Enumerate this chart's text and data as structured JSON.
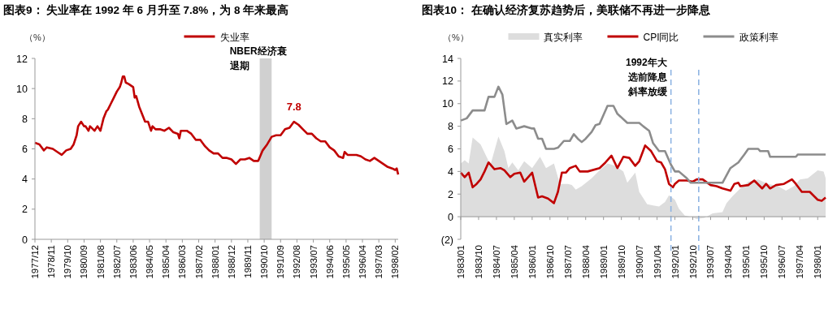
{
  "chart_data": [
    {
      "type": "line",
      "title": "图表9：  失业率在 1992 年 6 月升至 7.8%，为 8 年来最高",
      "ylabel": "（%）",
      "legend": "top",
      "xlim": [
        "1977-12",
        "1998-04"
      ],
      "xticks": [
        {
          "value": "1977-12",
          "label": "1977/12"
        },
        {
          "value": "1978-11",
          "label": "1978/11"
        },
        {
          "value": "1979-10",
          "label": "1979/10"
        },
        {
          "value": "1980-09",
          "label": "1980/09"
        },
        {
          "value": "1981-08",
          "label": "1981/08"
        },
        {
          "value": "1982-07",
          "label": "1982/07"
        },
        {
          "value": "1983-06",
          "label": "1983/06"
        },
        {
          "value": "1984-05",
          "label": "1984/05"
        },
        {
          "value": "1985-04",
          "label": "1985/04"
        },
        {
          "value": "1986-03",
          "label": "1986/03"
        },
        {
          "value": "1987-02",
          "label": "1987/02"
        },
        {
          "value": "1988-01",
          "label": "1988/01"
        },
        {
          "value": "1988-12",
          "label": "1988/12"
        },
        {
          "value": "1989-11",
          "label": "1989/11"
        },
        {
          "value": "1990-10",
          "label": "1990/10"
        },
        {
          "value": "1991-09",
          "label": "1991/09"
        },
        {
          "value": "1992-08",
          "label": "1992/08"
        },
        {
          "value": "1993-07",
          "label": "1993/07"
        },
        {
          "value": "1994-06",
          "label": "1994/06"
        },
        {
          "value": "1995-05",
          "label": "1995/05"
        },
        {
          "value": "1996-04",
          "label": "1996/04"
        },
        {
          "value": "1997-03",
          "label": "1997/03"
        },
        {
          "value": "1998-02",
          "label": "1998/02"
        }
      ],
      "ylim": [
        0,
        12
      ],
      "yticks": [
        0,
        2,
        4,
        6,
        8,
        10,
        12
      ],
      "bands": [
        {
          "axis": "x",
          "from": "1990-07",
          "to": "1991-03",
          "label": "NBER经济衰退期",
          "color": "#c8c8c8"
        }
      ],
      "annotations": [
        {
          "text": "7.8",
          "x": "1992-06",
          "y": 7.8
        }
      ],
      "series": [
        {
          "name": "失业率",
          "color": "#c00000",
          "type": "line",
          "x": [
            "1977-12",
            "1978-03",
            "1978-06",
            "1978-08",
            "1978-12",
            "1979-03",
            "1979-06",
            "1979-09",
            "1979-12",
            "1980-02",
            "1980-04",
            "1980-05",
            "1980-07",
            "1980-09",
            "1980-10",
            "1980-12",
            "1981-01",
            "1981-04",
            "1981-06",
            "1981-08",
            "1981-10",
            "1981-12",
            "1982-01",
            "1982-03",
            "1982-05",
            "1982-07",
            "1982-09",
            "1982-10",
            "1982-11",
            "1982-12",
            "1983-01",
            "1983-03",
            "1983-06",
            "1983-07",
            "1983-08",
            "1983-10",
            "1983-12",
            "1984-02",
            "1984-04",
            "1984-06",
            "1984-07",
            "1984-09",
            "1984-12",
            "1985-03",
            "1985-06",
            "1985-09",
            "1985-12",
            "1986-01",
            "1986-02",
            "1986-06",
            "1986-09",
            "1986-12",
            "1987-03",
            "1987-06",
            "1987-09",
            "1987-12",
            "1988-03",
            "1988-06",
            "1988-09",
            "1988-12",
            "1989-03",
            "1989-06",
            "1989-09",
            "1989-12",
            "1990-03",
            "1990-06",
            "1990-09",
            "1990-12",
            "1991-03",
            "1991-06",
            "1991-09",
            "1991-12",
            "1992-03",
            "1992-06",
            "1992-09",
            "1992-12",
            "1993-03",
            "1993-06",
            "1993-09",
            "1993-12",
            "1994-03",
            "1994-06",
            "1994-09",
            "1994-12",
            "1995-03",
            "1995-04",
            "1995-06",
            "1995-09",
            "1995-12",
            "1996-03",
            "1996-06",
            "1996-09",
            "1996-12",
            "1997-03",
            "1997-06",
            "1997-09",
            "1997-12",
            "1998-02",
            "1998-03",
            "1998-04"
          ],
          "values": [
            6.4,
            6.3,
            5.9,
            6.1,
            6.0,
            5.8,
            5.6,
            5.9,
            6.0,
            6.3,
            6.9,
            7.5,
            7.8,
            7.5,
            7.5,
            7.2,
            7.5,
            7.2,
            7.5,
            7.2,
            8.0,
            8.5,
            8.6,
            9.0,
            9.4,
            9.8,
            10.1,
            10.4,
            10.8,
            10.8,
            10.4,
            10.3,
            10.1,
            9.4,
            9.5,
            8.8,
            8.3,
            7.8,
            7.8,
            7.2,
            7.5,
            7.3,
            7.3,
            7.2,
            7.4,
            7.1,
            7.0,
            6.7,
            7.2,
            7.2,
            7.0,
            6.6,
            6.6,
            6.2,
            5.9,
            5.7,
            5.7,
            5.4,
            5.4,
            5.3,
            5.0,
            5.3,
            5.3,
            5.4,
            5.2,
            5.2,
            5.9,
            6.3,
            6.8,
            6.9,
            6.9,
            7.3,
            7.4,
            7.8,
            7.6,
            7.3,
            7.0,
            7.0,
            6.7,
            6.5,
            6.5,
            6.1,
            5.9,
            5.5,
            5.4,
            5.8,
            5.6,
            5.6,
            5.6,
            5.5,
            5.3,
            5.2,
            5.4,
            5.2,
            5.0,
            4.8,
            4.7,
            4.6,
            4.7,
            4.3
          ]
        }
      ]
    },
    {
      "type": "line",
      "title": "图表10：  在确认经济复苏趋势后，美联储不再进一步降息",
      "ylabel": "（%）",
      "legend": "top",
      "xlim": [
        "1983-01",
        "1998-05"
      ],
      "xticks": [
        {
          "value": "1983-01",
          "label": "1983/01"
        },
        {
          "value": "1983-10",
          "label": "1983/10"
        },
        {
          "value": "1984-07",
          "label": "1984/07"
        },
        {
          "value": "1985-04",
          "label": "1985/04"
        },
        {
          "value": "1986-01",
          "label": "1986/01"
        },
        {
          "value": "1986-10",
          "label": "1986/10"
        },
        {
          "value": "1987-07",
          "label": "1987/07"
        },
        {
          "value": "1988-04",
          "label": "1988/04"
        },
        {
          "value": "1989-01",
          "label": "1989/01"
        },
        {
          "value": "1989-10",
          "label": "1989/10"
        },
        {
          "value": "1990-07",
          "label": "1990/07"
        },
        {
          "value": "1991-04",
          "label": "1991/04"
        },
        {
          "value": "1992-01",
          "label": "1992/01"
        },
        {
          "value": "1992-10",
          "label": "1992/10"
        },
        {
          "value": "1993-07",
          "label": "1993/07"
        },
        {
          "value": "1994-04",
          "label": "1994/04"
        },
        {
          "value": "1995-01",
          "label": "1995/01"
        },
        {
          "value": "1995-10",
          "label": "1995/10"
        },
        {
          "value": "1996-07",
          "label": "1996/07"
        },
        {
          "value": "1997-04",
          "label": "1997/04"
        },
        {
          "value": "1998-01",
          "label": "1998/01"
        }
      ],
      "ylim": [
        -2,
        14
      ],
      "yticks": [
        {
          "value": -2,
          "label": "(2)"
        },
        0,
        2,
        4,
        6,
        8,
        10,
        12,
        14
      ],
      "ref_lines": [
        {
          "axis": "x",
          "value": "1991-11",
          "label": "1992年大选前降息斜率放缓",
          "color": "#8eb4e3",
          "line_style": "dashed"
        },
        {
          "axis": "x",
          "value": "1993-01",
          "color": "#8eb4e3",
          "line_style": "dashed"
        }
      ],
      "series": [
        {
          "name": "真实利率",
          "color": "#dddddd",
          "type": "area",
          "x": [
            "1983-01",
            "1983-03",
            "1983-05",
            "1983-07",
            "1983-11",
            "1984-02",
            "1984-04",
            "1984-08",
            "1984-11",
            "1985-01",
            "1985-03",
            "1985-06",
            "1985-09",
            "1986-01",
            "1986-05",
            "1986-08",
            "1986-12",
            "1987-03",
            "1987-07",
            "1987-09",
            "1987-11",
            "1988-02",
            "1988-07",
            "1988-11",
            "1989-03",
            "1989-07",
            "1989-11",
            "1990-01",
            "1990-05",
            "1990-07",
            "1990-11",
            "1991-02",
            "1991-05",
            "1991-08",
            "1991-10",
            "1992-01",
            "1992-03",
            "1992-06",
            "1992-09",
            "1992-12",
            "1993-04",
            "1993-08",
            "1994-01",
            "1994-03",
            "1994-06",
            "1994-10",
            "1995-02",
            "1995-07",
            "1995-12",
            "1996-05",
            "1996-09",
            "1997-01",
            "1997-04",
            "1997-08",
            "1998-01",
            "1998-04",
            "1998-05"
          ],
          "values": [
            4.7,
            5.0,
            4.7,
            7.0,
            6.4,
            5.3,
            4.6,
            7.1,
            5.8,
            4.3,
            4.8,
            4.1,
            4.9,
            4.3,
            5.3,
            4.3,
            4.7,
            2.9,
            2.9,
            2.8,
            2.4,
            2.7,
            3.4,
            4.1,
            4.7,
            4.5,
            4.0,
            3.0,
            3.9,
            2.2,
            1.1,
            1.0,
            0.9,
            1.3,
            1.9,
            1.5,
            0.7,
            0.1,
            0,
            -0.2,
            -0.1,
            0.3,
            0.4,
            1.2,
            1.8,
            2.5,
            3.1,
            3.3,
            2.9,
            2.7,
            2.3,
            2.7,
            3.3,
            3.4,
            4.1,
            4.0,
            3.4
          ]
        },
        {
          "name": "CPI同比",
          "color": "#c00000",
          "type": "line",
          "x": [
            "1983-01",
            "1983-03",
            "1983-05",
            "1983-07",
            "1983-09",
            "1983-11",
            "1984-01",
            "1984-03",
            "1984-06",
            "1984-09",
            "1984-11",
            "1985-02",
            "1985-04",
            "1985-07",
            "1985-09",
            "1986-01",
            "1986-04",
            "1986-06",
            "1986-09",
            "1986-12",
            "1987-02",
            "1987-04",
            "1987-06",
            "1987-08",
            "1987-11",
            "1988-01",
            "1988-05",
            "1988-11",
            "1989-02",
            "1989-05",
            "1989-08",
            "1989-11",
            "1990-02",
            "1990-05",
            "1990-07",
            "1990-10",
            "1991-01",
            "1991-04",
            "1991-06",
            "1991-08",
            "1991-10",
            "1991-12",
            "1992-01",
            "1992-03",
            "1992-07",
            "1992-10",
            "1992-12",
            "1993-03",
            "1993-07",
            "1993-10",
            "1994-01",
            "1994-05",
            "1994-07",
            "1994-09",
            "1994-10",
            "1995-02",
            "1995-05",
            "1995-09",
            "1995-11",
            "1996-01",
            "1996-04",
            "1996-08",
            "1996-12",
            "1997-02",
            "1997-05",
            "1997-09",
            "1998-01",
            "1998-03",
            "1998-05"
          ],
          "values": [
            3.9,
            3.5,
            3.9,
            2.6,
            2.9,
            3.3,
            4.0,
            4.8,
            4.2,
            4.3,
            4.1,
            3.5,
            3.8,
            3.9,
            3.1,
            3.9,
            1.7,
            1.8,
            1.6,
            1.2,
            2.2,
            3.9,
            3.9,
            4.3,
            4.5,
            4.0,
            4.0,
            4.3,
            4.8,
            5.4,
            4.3,
            5.3,
            5.2,
            4.5,
            4.9,
            6.3,
            5.8,
            4.9,
            4.8,
            4.2,
            2.9,
            2.6,
            2.9,
            3.2,
            3.2,
            3.1,
            3.3,
            3.3,
            2.8,
            2.7,
            2.5,
            2.3,
            2.9,
            3.0,
            2.7,
            2.8,
            3.2,
            2.5,
            2.9,
            2.5,
            2.8,
            2.9,
            3.3,
            2.9,
            2.2,
            2.2,
            1.5,
            1.4,
            1.7
          ]
        },
        {
          "name": "政策利率",
          "color": "#8c8c8c",
          "type": "line",
          "x": [
            "1983-01",
            "1983-04",
            "1983-07",
            "1984-01",
            "1984-03",
            "1984-06",
            "1984-08",
            "1984-10",
            "1984-12",
            "1985-03",
            "1985-05",
            "1985-09",
            "1986-01",
            "1986-02",
            "1986-04",
            "1986-06",
            "1986-08",
            "1986-12",
            "1987-02",
            "1987-05",
            "1987-08",
            "1987-10",
            "1987-12",
            "1988-02",
            "1988-04",
            "1988-07",
            "1988-09",
            "1988-11",
            "1989-03",
            "1989-06",
            "1989-08",
            "1990-01",
            "1990-07",
            "1990-09",
            "1990-12",
            "1991-02",
            "1991-05",
            "1991-08",
            "1991-11",
            "1992-01",
            "1992-03",
            "1992-07",
            "1992-09",
            "1994-01",
            "1994-05",
            "1994-09",
            "1994-12",
            "1995-02",
            "1995-07",
            "1995-08",
            "1995-12",
            "1996-01",
            "1997-02",
            "1997-03",
            "1998-05"
          ],
          "values": [
            8.5,
            8.7,
            9.4,
            9.4,
            10.6,
            10.6,
            11.5,
            10.8,
            8.2,
            8.5,
            7.8,
            8.0,
            7.8,
            7.8,
            6.9,
            6.9,
            6.0,
            6.0,
            6.1,
            6.7,
            6.7,
            7.3,
            6.9,
            6.6,
            6.9,
            7.5,
            8.1,
            8.2,
            9.8,
            9.8,
            9.1,
            8.3,
            8.3,
            8.0,
            7.6,
            6.5,
            5.8,
            5.8,
            4.6,
            4.0,
            4.0,
            3.4,
            3.0,
            3.0,
            4.3,
            4.8,
            5.5,
            6.0,
            6.0,
            5.8,
            5.8,
            5.3,
            5.3,
            5.5,
            5.5
          ]
        }
      ]
    }
  ]
}
